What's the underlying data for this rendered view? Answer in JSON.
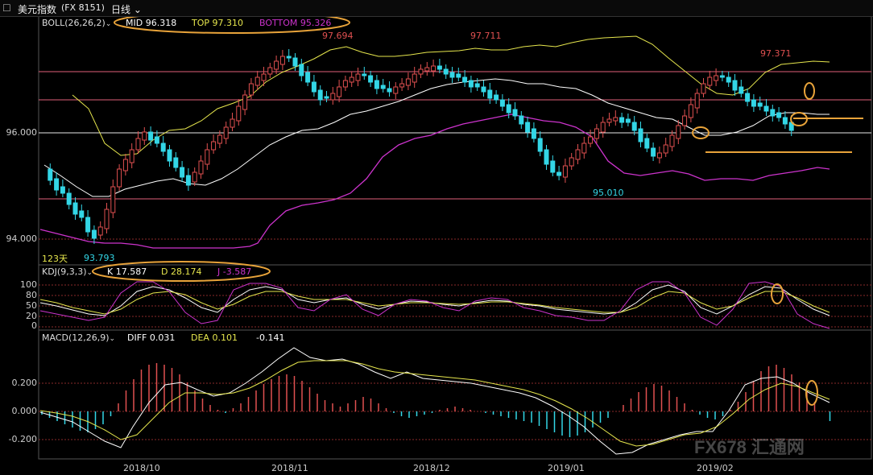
{
  "window": {
    "title": "美元指数",
    "code": "(FX 8151)",
    "period": "日线",
    "period_icon": "chevron-down-icon"
  },
  "colors": {
    "background": "#000000",
    "up": "#e05050",
    "down": "#33d6e6",
    "boll_mid": "#ffffff",
    "boll_band": "#e6e64d",
    "boll_bottom": "#cc33cc",
    "highlight": "#e8a33a",
    "hline": "#e0607a"
  },
  "boll": {
    "label": "BOLL(26,26,2)",
    "mid_label": "MID",
    "mid_value": "96.318",
    "top_label": "TOP",
    "top_value": "97.310",
    "bottom_label": "BOTTOM",
    "bottom_value": "95.326"
  },
  "price_axis": [
    "96.000",
    "94.000"
  ],
  "annotations": {
    "high1": "97.694",
    "high2": "97.711",
    "high3": "97.371",
    "low1": "93.793",
    "low2": "95.010",
    "days": "123天"
  },
  "kdj": {
    "label": "KDJ(9,3,3)",
    "k_label": "K",
    "k_value": "17.587",
    "d_label": "D",
    "d_value": "28.174",
    "j_label": "J",
    "j_value": "-3.587",
    "axis": [
      "100",
      "80",
      "50",
      "20",
      "0"
    ]
  },
  "macd": {
    "label": "MACD(12,26,9)",
    "diff_label": "DIFF",
    "diff_value": "0.031",
    "dea_label": "DEA",
    "dea_value": "0.101",
    "macd_value": "-0.141",
    "axis": [
      "0.200",
      "0.000",
      "-0.200"
    ]
  },
  "time_axis": [
    "2018/10",
    "2018/11",
    "2018/12",
    "2019/01",
    "2019/02"
  ],
  "watermark": "FX678 汇通网"
}
